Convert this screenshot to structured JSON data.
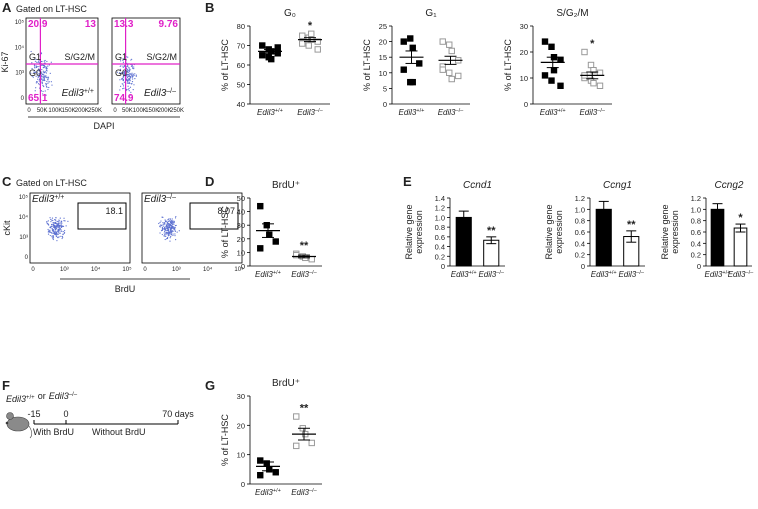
{
  "panel_labels": [
    "A",
    "B",
    "C",
    "D",
    "E",
    "F",
    "G"
  ],
  "flow_cycle": {
    "title": "Gated on LT-HSC",
    "ylabel": "Ki-67",
    "xlabel": "DAPI",
    "yticks": [
      "0",
      "10³",
      "10⁴",
      "10⁵"
    ],
    "xticks": [
      "0",
      "50K",
      "100K",
      "150K",
      "200K",
      "250K"
    ],
    "phases": {
      "g1": "G1",
      "sg2m": "S/G2/M",
      "g0": "G0"
    },
    "plots": [
      {
        "genotype": {
          "gene": "Edil3",
          "genotype": "+/+"
        },
        "quadrants": {
          "g1": 20.9,
          "sg2m": 13,
          "g0": 65.1
        }
      },
      {
        "genotype": {
          "gene": "Edil3",
          "genotype": "–/–"
        },
        "quadrants": {
          "g1": 13.3,
          "sg2m": 9.76,
          "g0": 74.9
        }
      }
    ]
  },
  "flow_brdu": {
    "title": "Gated on LT-HSC",
    "ylabel": "cKit",
    "xlabel": "BrdU",
    "yticks": [
      "0",
      "10³",
      "10⁴",
      "10⁵"
    ],
    "xticks": [
      "0",
      "10³",
      "10⁴",
      "10⁵"
    ],
    "plots": [
      {
        "genotype": {
          "gene": "Edil3",
          "genotype": "+/+"
        },
        "gate": 18.1
      },
      {
        "genotype": {
          "gene": "Edil3",
          "genotype": "–/–"
        },
        "gate": 8.07
      }
    ]
  },
  "timeline": {
    "genotypes": [
      {
        "gene": "Edil3",
        "genotype": "+/+"
      },
      {
        "gene": "Edil3",
        "genotype": "–/–"
      }
    ],
    "connector": "or",
    "ticks": [
      "-15",
      "0",
      "70 days"
    ],
    "phases": [
      "With BrdU",
      "Without BrdU"
    ]
  },
  "chart_data": [
    {
      "type": "dot",
      "title": "G₀",
      "ylabel": "% of LT-HSC",
      "categories": [
        {
          "gene": "Edil3",
          "genotype": "+/+"
        },
        {
          "gene": "Edil3",
          "genotype": "–/–"
        }
      ],
      "points": [
        [
          70,
          68,
          67,
          66,
          65,
          64,
          63,
          69
        ],
        [
          75,
          74,
          73,
          72,
          71,
          70,
          76,
          68
        ]
      ],
      "means": [
        67,
        73
      ],
      "errors": [
        1,
        1
      ],
      "markers": [
        "filled",
        "open"
      ],
      "colors": [
        "#000000",
        "#999999"
      ],
      "ylim": [
        40,
        80
      ],
      "yticks": [
        40,
        50,
        60,
        70,
        80
      ],
      "significance": [
        {
          "index": 1,
          "label": "*"
        }
      ]
    },
    {
      "type": "dot",
      "title": "G₁",
      "ylabel": "% of LT-HSC",
      "categories": [
        {
          "gene": "Edil3",
          "genotype": "+/+"
        },
        {
          "gene": "Edil3",
          "genotype": "–/–"
        }
      ],
      "points": [
        [
          20,
          21,
          18,
          13,
          11,
          7,
          7
        ],
        [
          20,
          19,
          17,
          14,
          12,
          10,
          8,
          9,
          11
        ]
      ],
      "means": [
        15,
        14
      ],
      "errors": [
        2,
        1.3
      ],
      "markers": [
        "filled",
        "open"
      ],
      "colors": [
        "#000000",
        "#999999"
      ],
      "ylim": [
        0,
        25
      ],
      "yticks": [
        0,
        5,
        10,
        15,
        20,
        25
      ],
      "significance": []
    },
    {
      "type": "dot",
      "title": "S/G₂/M",
      "ylabel": "% of LT-HSC",
      "categories": [
        {
          "gene": "Edil3",
          "genotype": "+/+"
        },
        {
          "gene": "Edil3",
          "genotype": "–/–"
        }
      ],
      "points": [
        [
          24,
          22,
          18,
          17,
          11,
          9,
          13,
          7
        ],
        [
          20,
          15,
          13,
          12,
          10,
          9,
          8,
          7,
          11
        ]
      ],
      "means": [
        16,
        11
      ],
      "errors": [
        2,
        1.3
      ],
      "markers": [
        "filled",
        "open"
      ],
      "colors": [
        "#000000",
        "#999999"
      ],
      "ylim": [
        0,
        30
      ],
      "yticks": [
        0,
        10,
        20,
        30
      ],
      "significance": [
        {
          "index": 1,
          "label": "*"
        }
      ]
    },
    {
      "type": "dot",
      "title": "BrdU⁺",
      "ylabel": "% of LT-HSC",
      "categories": [
        {
          "gene": "Edil3",
          "genotype": "+/+"
        },
        {
          "gene": "Edil3",
          "genotype": "–/–"
        }
      ],
      "points": [
        [
          44,
          30,
          23,
          18,
          13
        ],
        [
          9,
          7,
          6,
          5,
          8
        ]
      ],
      "means": [
        26,
        7
      ],
      "errors": [
        5,
        1
      ],
      "markers": [
        "filled",
        "open"
      ],
      "colors": [
        "#000000",
        "#999999"
      ],
      "ylim": [
        0,
        50
      ],
      "yticks": [
        0,
        10,
        20,
        30,
        40,
        50
      ],
      "significance": [
        {
          "index": 1,
          "label": "**"
        }
      ]
    },
    {
      "type": "bar",
      "title": "Ccnd1",
      "italic_title": true,
      "ylabel": [
        "Relative gene",
        "expression"
      ],
      "categories": [
        {
          "gene": "Edil3",
          "genotype": "+/+"
        },
        {
          "gene": "Edil3",
          "genotype": "–/–"
        }
      ],
      "values": [
        1.0,
        0.53
      ],
      "errors": [
        0.13,
        0.07
      ],
      "colors": [
        "#000000",
        "#ffffff"
      ],
      "ylim": [
        0,
        1.4
      ],
      "yticks": [
        0,
        0.2,
        0.4,
        0.6,
        0.8,
        {
          "value": 1,
          "label": "1.0"
        },
        1.2,
        1.4
      ],
      "significance": [
        {
          "index": 1,
          "label": "**"
        }
      ]
    },
    {
      "type": "bar",
      "title": "Ccng1",
      "italic_title": true,
      "ylabel": [
        "Relative gene",
        "expression"
      ],
      "categories": [
        {
          "gene": "Edil3",
          "genotype": "+/+"
        },
        {
          "gene": "Edil3",
          "genotype": "–/–"
        }
      ],
      "values": [
        1.0,
        0.52
      ],
      "errors": [
        0.14,
        0.1
      ],
      "colors": [
        "#000000",
        "#ffffff"
      ],
      "ylim": [
        0,
        1.2
      ],
      "yticks": [
        0,
        0.2,
        0.4,
        0.6,
        0.8,
        {
          "value": 1,
          "label": "1.0"
        },
        1.2
      ],
      "significance": [
        {
          "index": 1,
          "label": "**"
        }
      ]
    },
    {
      "type": "bar",
      "title": "Ccng2",
      "italic_title": true,
      "ylabel": [
        "Relative gene",
        "expression"
      ],
      "categories": [
        {
          "gene": "Edil3",
          "genotype": "+/+"
        },
        {
          "gene": "Edil3",
          "genotype": "–/–"
        }
      ],
      "values": [
        1.0,
        0.67
      ],
      "errors": [
        0.1,
        0.07
      ],
      "colors": [
        "#000000",
        "#ffffff"
      ],
      "ylim": [
        0,
        1.2
      ],
      "yticks": [
        0,
        0.2,
        0.4,
        0.6,
        0.8,
        {
          "value": 1,
          "label": "1.0"
        },
        1.2
      ],
      "significance": [
        {
          "index": 1,
          "label": "*"
        }
      ]
    },
    {
      "type": "dot",
      "title": "BrdU⁺",
      "ylabel": "% of LT-HSC",
      "categories": [
        {
          "gene": "Edil3",
          "genotype": "+/+"
        },
        {
          "gene": "Edil3",
          "genotype": "–/–"
        }
      ],
      "points": [
        [
          8,
          7,
          5,
          4,
          3
        ],
        [
          23,
          19,
          17,
          14,
          13
        ]
      ],
      "means": [
        6,
        17
      ],
      "errors": [
        1.5,
        2
      ],
      "markers": [
        "filled",
        "open"
      ],
      "colors": [
        "#000000",
        "#999999"
      ],
      "ylim": [
        0,
        30
      ],
      "yticks": [
        0,
        10,
        20,
        30
      ],
      "significance": [
        {
          "index": 1,
          "label": "**"
        }
      ]
    }
  ]
}
